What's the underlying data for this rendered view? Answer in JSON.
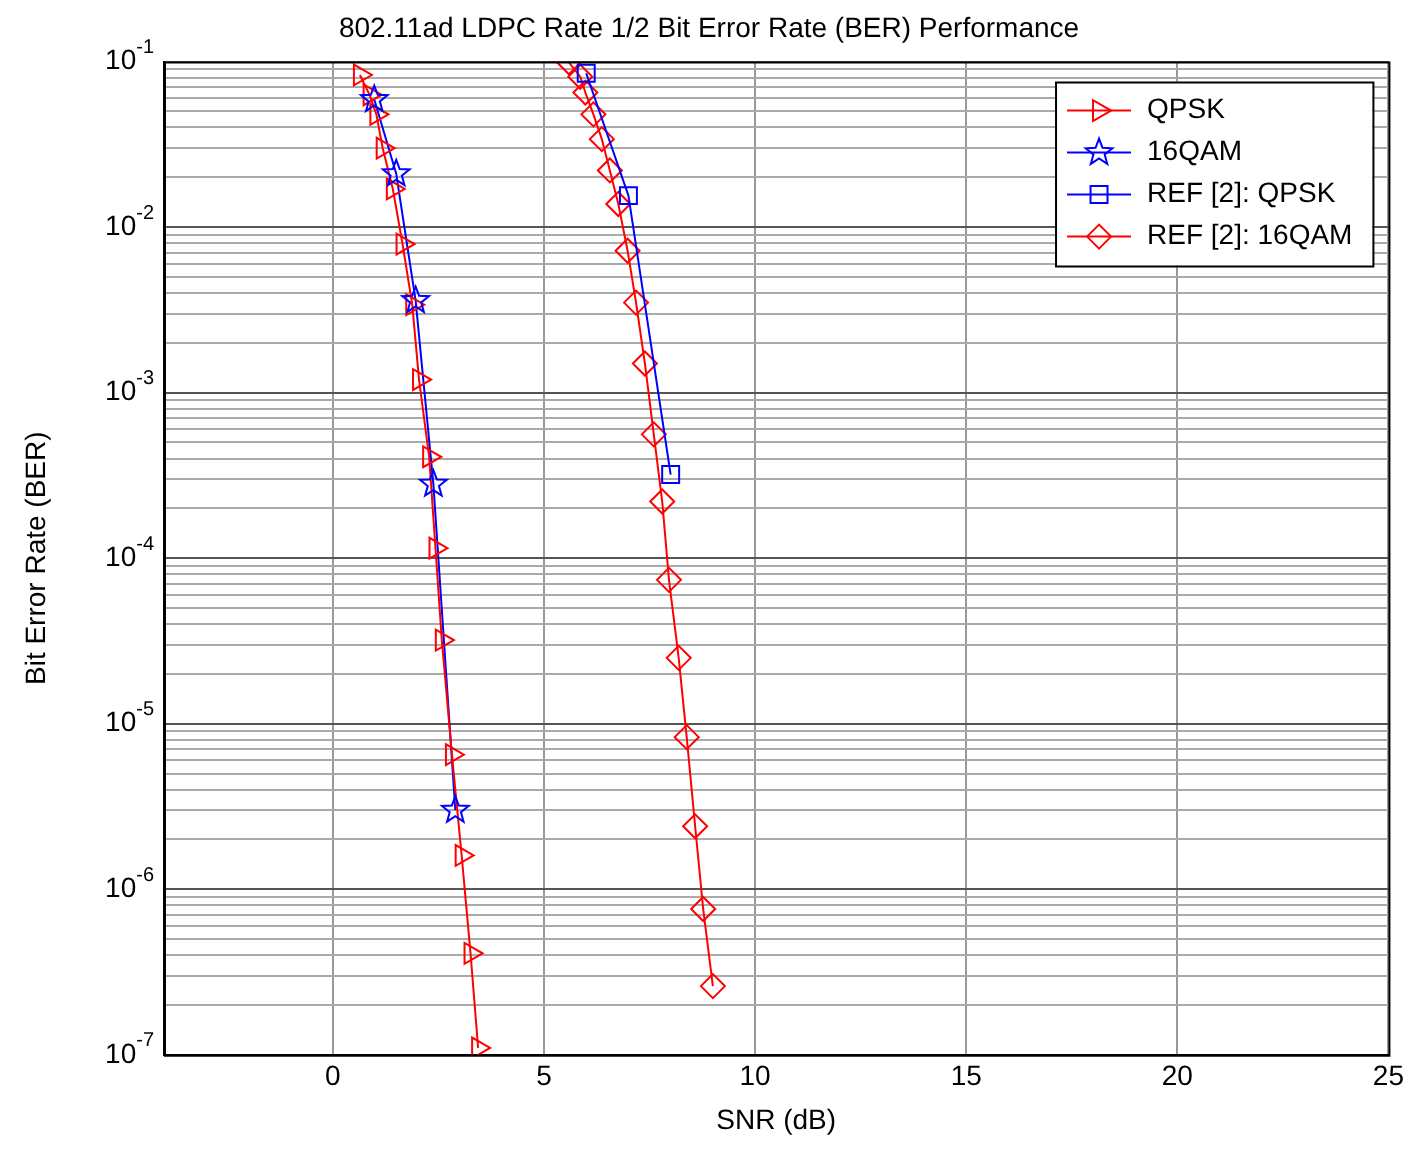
{
  "chart_data": {
    "type": "line",
    "title": "802.11ad LDPC Rate 1/2 Bit Error Rate (BER) Performance",
    "xlabel": "SNR (dB)",
    "ylabel": "Bit Error Rate (BER)",
    "log": "y",
    "grid": true,
    "legend": "top right",
    "line_style": "solid",
    "xlim": [
      -4,
      25
    ],
    "xticks": [
      0,
      5,
      10,
      15,
      20,
      25
    ],
    "ylim": [
      1e-07,
      0.1
    ],
    "yticks": [
      {
        "value": 1e-07,
        "label": "10$^{-7}$"
      },
      {
        "value": 2e-07,
        "label": null
      },
      {
        "value": 3e-07,
        "label": null
      },
      {
        "value": 4e-07,
        "label": null
      },
      {
        "value": 5e-07,
        "label": null
      },
      {
        "value": 6e-07,
        "label": null
      },
      {
        "value": 7e-07,
        "label": null
      },
      {
        "value": 8e-07,
        "label": null
      },
      {
        "value": 9e-07,
        "label": null
      },
      {
        "value": 1e-06,
        "label": "10$^{-6}$"
      },
      {
        "value": 2e-06,
        "label": null
      },
      {
        "value": 3e-06,
        "label": null
      },
      {
        "value": 4e-06,
        "label": null
      },
      {
        "value": 5e-06,
        "label": null
      },
      {
        "value": 6e-06,
        "label": null
      },
      {
        "value": 7e-06,
        "label": null
      },
      {
        "value": 8e-06,
        "label": null
      },
      {
        "value": 9e-06,
        "label": null
      },
      {
        "value": 1e-05,
        "label": "10$^{-5}$"
      },
      {
        "value": 2e-05,
        "label": null
      },
      {
        "value": 3e-05,
        "label": null
      },
      {
        "value": 4e-05,
        "label": null
      },
      {
        "value": 5e-05,
        "label": null
      },
      {
        "value": 6e-05,
        "label": null
      },
      {
        "value": 7e-05,
        "label": null
      },
      {
        "value": 8e-05,
        "label": null
      },
      {
        "value": 9e-05,
        "label": null
      },
      {
        "value": 0.0001,
        "label": "10$^{-4}$"
      },
      {
        "value": 0.0002,
        "label": null
      },
      {
        "value": 0.0003,
        "label": null
      },
      {
        "value": 0.0004,
        "label": null
      },
      {
        "value": 0.0005,
        "label": null
      },
      {
        "value": 0.0006,
        "label": null
      },
      {
        "value": 0.0007,
        "label": null
      },
      {
        "value": 0.0008,
        "label": null
      },
      {
        "value": 0.0009,
        "label": null
      },
      {
        "value": 0.001,
        "label": "10$^{-3}$"
      },
      {
        "value": 0.002,
        "label": null
      },
      {
        "value": 0.003,
        "label": null
      },
      {
        "value": 0.004,
        "label": null
      },
      {
        "value": 0.005,
        "label": null
      },
      {
        "value": 0.006,
        "label": null
      },
      {
        "value": 0.007,
        "label": null
      },
      {
        "value": 0.008,
        "label": null
      },
      {
        "value": 0.009,
        "label": null
      },
      {
        "value": 0.01,
        "label": "10$^{-2}$"
      },
      {
        "value": 0.02,
        "label": null
      },
      {
        "value": 0.03,
        "label": null
      },
      {
        "value": 0.04,
        "label": null
      },
      {
        "value": 0.05,
        "label": null
      },
      {
        "value": 0.06,
        "label": null
      },
      {
        "value": 0.07,
        "label": null
      },
      {
        "value": 0.08,
        "label": null
      },
      {
        "value": 0.09,
        "label": null
      },
      {
        "value": 0.1,
        "label": "10$^{-1}$"
      }
    ],
    "series": [
      {
        "name": "QPSK",
        "color": "#ff0000",
        "marker": "triangle",
        "x": [
          0.64,
          0.87,
          1.03,
          1.18,
          1.42,
          1.65,
          1.88,
          2.04,
          2.28,
          2.43,
          2.58,
          2.82,
          3.05,
          3.26,
          3.44
        ],
        "values": [
          0.083,
          0.063,
          0.048,
          0.03,
          0.017,
          0.0079,
          0.0034,
          0.0012,
          0.00041,
          0.000115,
          3.2e-05,
          6.5e-06,
          1.6e-06,
          4.1e-07,
          1.1e-07
        ]
      },
      {
        "name": "16QAM",
        "color": "#0000ff",
        "marker": "star",
        "x": [
          0.98,
          1.5,
          1.96,
          2.38,
          2.9
        ],
        "values": [
          0.059,
          0.021,
          0.0036,
          0.00028,
          3e-06
        ]
      },
      {
        "name": "REF [2]: QPSK",
        "color": "#0000ff",
        "marker": "square",
        "x": [
          6.0,
          7.0,
          8.0
        ],
        "values": [
          0.085,
          0.0155,
          0.00032
        ]
      },
      {
        "name": "REF [2]: 16QAM",
        "color": "#ff0000",
        "marker": "diamond",
        "x": [
          5.59,
          5.86,
          5.98,
          6.17,
          6.37,
          6.56,
          6.76,
          6.98,
          7.18,
          7.39,
          7.6,
          7.8,
          7.96,
          8.19,
          8.38,
          8.58,
          8.77,
          9.0
        ],
        "values": [
          0.099,
          0.081,
          0.065,
          0.048,
          0.034,
          0.022,
          0.0138,
          0.0072,
          0.0035,
          0.0015,
          0.00056,
          0.00022,
          7.4e-05,
          2.5e-05,
          8.3e-06,
          2.4e-06,
          7.6e-07,
          2.6e-07
        ]
      }
    ]
  }
}
